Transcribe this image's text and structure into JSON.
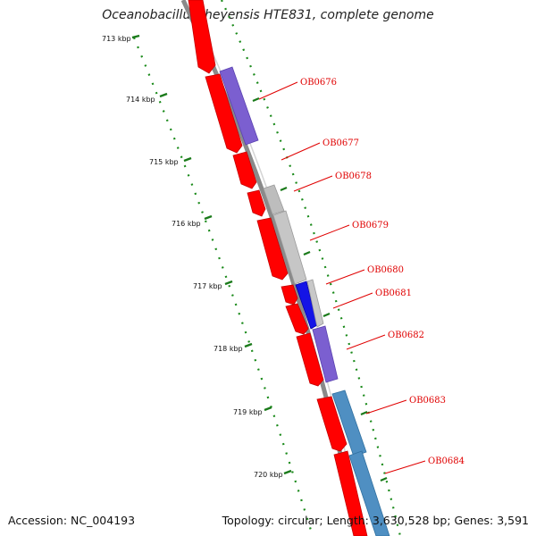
{
  "title": "Oceanobacillus iheyensis HTE831, complete genome",
  "footer": {
    "accession": "Accession: NC_004193",
    "summary": "Topology: circular; Length: 3,630,528 bp; Genes: 3,591"
  },
  "ticks": [
    {
      "label": "713 kbp"
    },
    {
      "label": "714 kbp"
    },
    {
      "label": "715 kbp"
    },
    {
      "label": "716 kbp"
    },
    {
      "label": "717 kbp"
    },
    {
      "label": "718 kbp"
    },
    {
      "label": "719 kbp"
    },
    {
      "label": "720 kbp"
    }
  ],
  "gene_labels": [
    "OB0676",
    "OB0677",
    "OB0678",
    "OB0679",
    "OB0680",
    "OB0681",
    "OB0682",
    "OB0683",
    "OB0684"
  ],
  "colors": {
    "forward_strand": "#ff0000",
    "feature_purple": "#7b5fd0",
    "feature_gray": "#bdbdbd",
    "feature_blue": "#1414e6",
    "feature_steelblue": "#4f8fc2",
    "label_red": "#e00000",
    "tick_green": "#006400",
    "backbone_gray": "#888888"
  }
}
